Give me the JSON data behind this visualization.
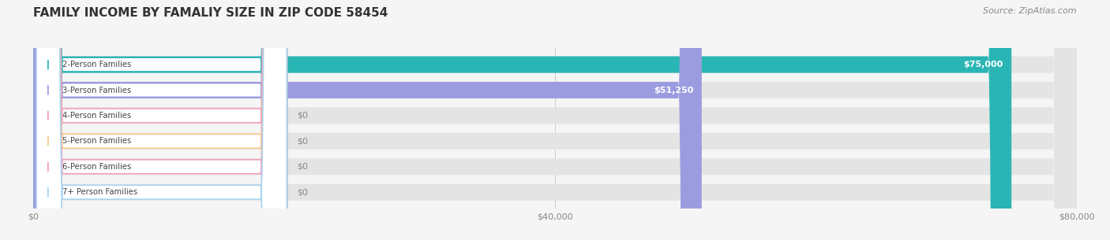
{
  "title": "FAMILY INCOME BY FAMALIY SIZE IN ZIP CODE 58454",
  "source": "Source: ZipAtlas.com",
  "categories": [
    "2-Person Families",
    "3-Person Families",
    "4-Person Families",
    "5-Person Families",
    "6-Person Families",
    "7+ Person Families"
  ],
  "values": [
    75000,
    51250,
    0,
    0,
    0,
    0
  ],
  "bar_colors": [
    "#2ab5b5",
    "#9b9ce0",
    "#f4a0b8",
    "#f8c98a",
    "#f4a0b8",
    "#a8d4f0"
  ],
  "label_colors": [
    "#ffffff",
    "#ffffff",
    "#888888",
    "#888888",
    "#888888",
    "#888888"
  ],
  "value_labels": [
    "$75,000",
    "$51,250",
    "$0",
    "$0",
    "$0",
    "$0"
  ],
  "xlim": [
    0,
    80000
  ],
  "xtick_labels": [
    "$0",
    "$40,000",
    "$80,000"
  ],
  "background_color": "#f5f5f5",
  "bar_bg_color": "#e4e4e4",
  "title_fontsize": 11,
  "source_fontsize": 8,
  "bar_height": 0.65,
  "label_border_colors": [
    "#2ab5b5",
    "#9b9ce0",
    "#f4a0b8",
    "#f8c98a",
    "#f4a0b8",
    "#a8d4f0"
  ]
}
